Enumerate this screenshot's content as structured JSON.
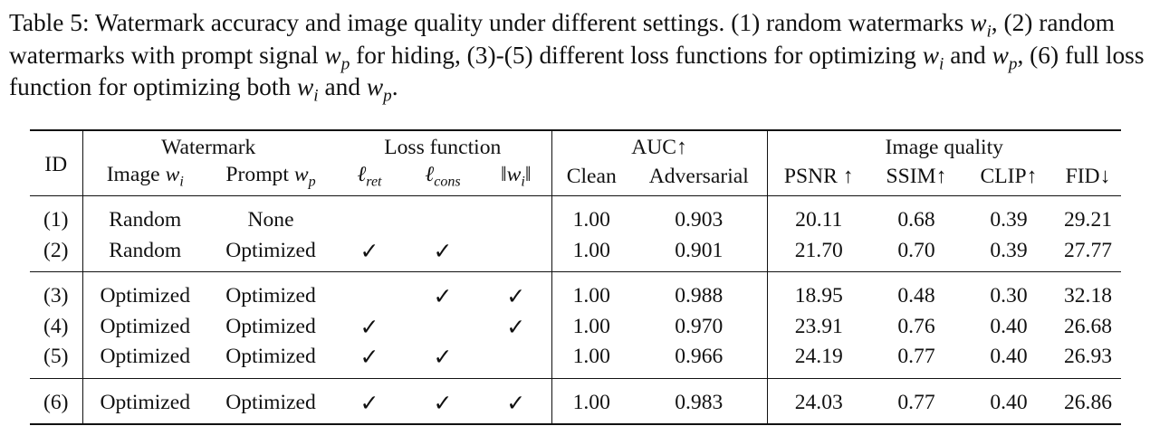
{
  "caption": {
    "part1": "Table 5: Watermark accuracy and image quality under different settings. (1) random watermarks",
    "part2": ", (2) random watermarks with prompt signal",
    "part3": "for hiding, (3)-(5) different loss functions for optimizing",
    "part4": "and",
    "part5": ", (6) full loss function for optimizing both",
    "part6": "and",
    "end": "."
  },
  "headers": {
    "id": "ID",
    "groups": {
      "watermark": "Watermark",
      "loss": "Loss function",
      "auc": "AUC↑",
      "quality": "Image quality"
    },
    "sub": {
      "image": "Image",
      "prompt": "Prompt",
      "l_ret": "ℓ",
      "l_ret_sub": "ret",
      "l_cons": "ℓ",
      "l_cons_sub": "cons",
      "norm": "‖w",
      "norm_sub": "i",
      "norm_end": "‖",
      "clean": "Clean",
      "adversarial": "Adversarial",
      "psnr": "PSNR ↑",
      "ssim": "SSIM↑",
      "clip": "CLIP↑",
      "fid": "FID↓"
    }
  },
  "math": {
    "w": "w",
    "i": "i",
    "p": "p"
  },
  "check": "✓",
  "rows": [
    {
      "id": "(1)",
      "image": "Random",
      "prompt": "None",
      "clean": "1.00",
      "adv": "0.903",
      "psnr": "20.11",
      "ssim": "0.68",
      "clip": "0.39",
      "fid": "29.21"
    },
    {
      "id": "(2)",
      "image": "Random",
      "prompt": "Optimized",
      "clean": "1.00",
      "adv": "0.901",
      "psnr": "21.70",
      "ssim": "0.70",
      "clip": "0.39",
      "fid": "27.77"
    },
    {
      "id": "(3)",
      "image": "Optimized",
      "prompt": "Optimized",
      "clean": "1.00",
      "adv": "0.988",
      "psnr": "18.95",
      "ssim": "0.48",
      "clip": "0.30",
      "fid": "32.18"
    },
    {
      "id": "(4)",
      "image": "Optimized",
      "prompt": "Optimized",
      "clean": "1.00",
      "adv": "0.970",
      "psnr": "23.91",
      "ssim": "0.76",
      "clip": "0.40",
      "fid": "26.68"
    },
    {
      "id": "(5)",
      "image": "Optimized",
      "prompt": "Optimized",
      "clean": "1.00",
      "adv": "0.966",
      "psnr": "24.19",
      "ssim": "0.77",
      "clip": "0.40",
      "fid": "26.93"
    },
    {
      "id": "(6)",
      "image": "Optimized",
      "prompt": "Optimized",
      "clean": "1.00",
      "adv": "0.983",
      "psnr": "24.03",
      "ssim": "0.77",
      "clip": "0.40",
      "fid": "26.86"
    }
  ]
}
